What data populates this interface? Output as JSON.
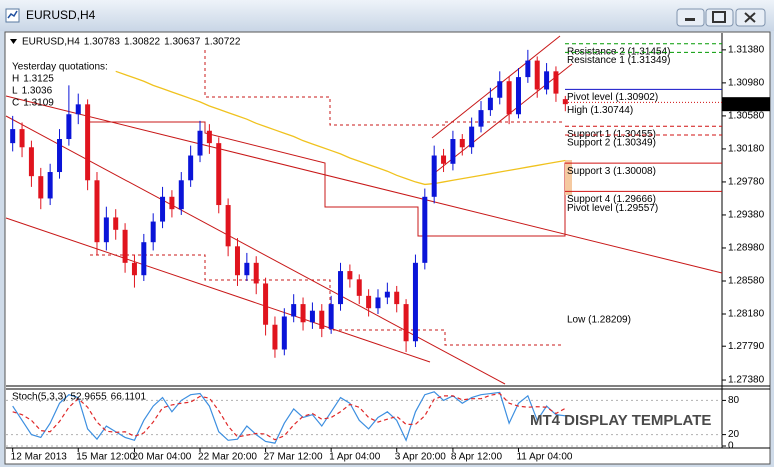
{
  "window": {
    "title": "EURUSD,H4"
  },
  "watermark": "MT4 DISPLAY TEMPLATE",
  "chart_data": [
    {
      "type": "candlestick",
      "title": "EURUSD,H4",
      "quote": {
        "open": 1.30783,
        "high": 1.30822,
        "low": 1.30637,
        "close": 1.30722
      },
      "yesterday": {
        "heading": "Yesterday quotations:",
        "rows": [
          {
            "label": "H",
            "value": 1.3125
          },
          {
            "label": "L",
            "value": 1.3036
          },
          {
            "label": "C",
            "value": 1.3109
          }
        ]
      },
      "categories": [
        "12 Mar 2013",
        null,
        null,
        null,
        null,
        null,
        null,
        "15 Mar 12:00",
        null,
        null,
        null,
        null,
        null,
        "20 Mar 04:00",
        null,
        null,
        null,
        null,
        null,
        null,
        "22 Mar 20:00",
        null,
        null,
        null,
        null,
        null,
        null,
        "27 Mar 12:00",
        null,
        null,
        null,
        null,
        null,
        null,
        "1 Apr 04:00",
        null,
        null,
        null,
        null,
        null,
        null,
        "3 Apr 20:00",
        null,
        null,
        null,
        null,
        null,
        "8 Apr 12:00",
        null,
        null,
        null,
        null,
        null,
        null,
        "11 Apr 04:00",
        null,
        null,
        null,
        null,
        null
      ],
      "open": [
        1.3025,
        1.3042,
        1.302,
        1.2985,
        1.2958,
        1.299,
        1.303,
        1.306,
        1.3072,
        1.298,
        1.2905,
        1.2935,
        1.292,
        1.288,
        1.2865,
        1.2905,
        1.293,
        1.296,
        1.2945,
        1.298,
        1.301,
        1.304,
        1.3025,
        1.295,
        1.29,
        1.2865,
        1.288,
        1.2855,
        1.2805,
        1.2775,
        1.2815,
        1.283,
        1.2808,
        1.2822,
        1.28,
        1.283,
        1.287,
        1.286,
        1.284,
        1.2825,
        1.2838,
        1.2845,
        1.283,
        1.2785,
        1.288,
        1.296,
        1.301,
        1.3,
        1.303,
        1.302,
        1.3045,
        1.3065,
        1.308,
        1.31,
        1.306,
        1.3105,
        1.3125,
        1.309,
        1.3112,
        1.30783
      ],
      "high": [
        1.3058,
        1.305,
        1.3028,
        1.2995,
        1.3,
        1.3042,
        1.3095,
        1.3085,
        1.3078,
        1.299,
        1.2948,
        1.2945,
        1.2928,
        1.289,
        1.2915,
        1.294,
        1.2972,
        1.2968,
        1.299,
        1.3022,
        1.3052,
        1.3048,
        1.3032,
        1.2958,
        1.291,
        1.2892,
        1.2888,
        1.2862,
        1.2815,
        1.2825,
        1.2842,
        1.2838,
        1.2832,
        1.283,
        1.284,
        1.288,
        1.2878,
        1.2866,
        1.2848,
        1.2848,
        1.2856,
        1.2852,
        1.2836,
        1.289,
        1.297,
        1.3022,
        1.3018,
        1.304,
        1.3036,
        1.3056,
        1.3076,
        1.3092,
        1.3112,
        1.3106,
        1.3116,
        1.3138,
        1.313,
        1.3122,
        1.3118,
        1.30822
      ],
      "low": [
        1.3015,
        1.3008,
        1.2972,
        1.2945,
        1.295,
        1.2982,
        1.3022,
        1.3048,
        1.2968,
        1.289,
        1.2895,
        1.2908,
        1.2868,
        1.285,
        1.2858,
        1.2895,
        1.2922,
        1.2935,
        1.2938,
        1.2972,
        1.3002,
        1.3012,
        1.294,
        1.2888,
        1.2852,
        1.2858,
        1.2842,
        1.2792,
        1.2765,
        1.2768,
        1.2808,
        1.2798,
        1.28,
        1.279,
        1.2794,
        1.2822,
        1.285,
        1.283,
        1.2815,
        1.2818,
        1.283,
        1.282,
        1.2772,
        1.2778,
        1.2872,
        1.2952,
        1.299,
        1.2992,
        1.301,
        1.3012,
        1.3038,
        1.3058,
        1.3072,
        1.3048,
        1.3055,
        1.3098,
        1.308,
        1.3084,
        1.3075,
        1.30637
      ],
      "close": [
        1.3042,
        1.302,
        1.2985,
        1.2958,
        1.299,
        1.303,
        1.306,
        1.3072,
        1.298,
        1.2905,
        1.2935,
        1.292,
        1.288,
        1.2865,
        1.2905,
        1.293,
        1.296,
        1.2945,
        1.298,
        1.301,
        1.304,
        1.3025,
        1.295,
        1.29,
        1.2865,
        1.288,
        1.2855,
        1.2805,
        1.2775,
        1.2815,
        1.283,
        1.2808,
        1.2822,
        1.28,
        1.283,
        1.287,
        1.286,
        1.284,
        1.2825,
        1.2838,
        1.2845,
        1.283,
        1.2785,
        1.288,
        1.296,
        1.301,
        1.3,
        1.303,
        1.302,
        1.3045,
        1.3065,
        1.308,
        1.31,
        1.306,
        1.3105,
        1.3125,
        1.309,
        1.3112,
        1.3085,
        1.30722
      ],
      "up_color": "#0a14d8",
      "down_color": "#e0141e",
      "moving_average": {
        "color": "#f0c21e",
        "values": [
          null,
          null,
          null,
          null,
          null,
          null,
          null,
          null,
          null,
          null,
          null,
          1.3112,
          1.3108,
          1.3104,
          1.31,
          1.3095,
          1.3091,
          1.3087,
          1.3083,
          1.3079,
          1.3075,
          1.307,
          1.3066,
          1.3062,
          1.3058,
          1.3054,
          1.3049,
          1.3045,
          1.3041,
          1.3037,
          1.3033,
          1.3028,
          1.3024,
          1.302,
          1.3016,
          1.3012,
          1.3007,
          1.3003,
          1.2999,
          1.2995,
          1.2991,
          1.2986,
          1.2982,
          1.2978,
          1.2975,
          1.2976,
          1.2978,
          1.298,
          1.2982,
          1.2984,
          1.2986,
          1.2988,
          1.299,
          1.2992,
          1.2994,
          1.2996,
          1.2998,
          1.3,
          1.3002,
          1.3004
        ]
      },
      "levels": [
        {
          "label": "Resistance 2 (1.31454)",
          "value": 1.31454,
          "color": "#009a00",
          "style": "dashed"
        },
        {
          "label": "Resistance 1 (1.31349)",
          "value": 1.31349,
          "color": "#009a00",
          "style": "dashed"
        },
        {
          "label": "Pivot level (1.30902)",
          "value": 1.30902,
          "color": "#1010c8",
          "style": "solid"
        },
        {
          "label": "High (1.30744)",
          "value": 1.30744,
          "color": "#d01010",
          "style": "dotted"
        },
        {
          "label": "Support 1 (1.30455)",
          "value": 1.30455,
          "color": "#d01010",
          "style": "dashed"
        },
        {
          "label": "Support 2 (1.30349)",
          "value": 1.30349,
          "color": "#d01010",
          "style": "dashed"
        },
        {
          "label": "Support 3 (1.30008)",
          "value": 1.30008,
          "color": "#d01010",
          "style": "solid"
        },
        {
          "label": "Support 4 (1.29666)",
          "value": 1.29666,
          "color": "#d01010",
          "style": "solid"
        },
        {
          "label": "Pivot level (1.29557)",
          "value": 1.29557,
          "color": "#d01010",
          "style": "none"
        },
        {
          "label": "Low (1.28209)",
          "value": 1.28209,
          "color": "#d01010",
          "style": "none"
        }
      ],
      "ylim": [
        1.2732,
        1.3156
      ],
      "yticks": [
        {
          "value": 1.3138,
          "label": "1.31380"
        },
        {
          "value": 1.3098,
          "label": "1.30980"
        },
        {
          "value": 1.3058,
          "label": "1.30580"
        },
        {
          "value": 1.3018,
          "label": "1.30180"
        },
        {
          "value": 1.2978,
          "label": "1.29780"
        },
        {
          "value": 1.2938,
          "label": "1.29380"
        },
        {
          "value": 1.2898,
          "label": "1.28980"
        },
        {
          "value": 1.2858,
          "label": "1.28580"
        },
        {
          "value": 1.2818,
          "label": "1.28180"
        },
        {
          "value": 1.2779,
          "label": "1.27790"
        },
        {
          "value": 1.2738,
          "label": "1.27380"
        }
      ]
    },
    {
      "type": "line",
      "title": "Stoch(5,3,3)",
      "series": [
        {
          "color": "#3d8fe0",
          "style": "solid",
          "values": [
            70,
            45,
            20,
            15,
            40,
            75,
            90,
            85,
            30,
            12,
            35,
            25,
            15,
            10,
            45,
            70,
            85,
            60,
            80,
            90,
            92,
            70,
            25,
            10,
            12,
            35,
            20,
            8,
            5,
            40,
            65,
            50,
            55,
            35,
            60,
            85,
            75,
            45,
            30,
            50,
            60,
            45,
            10,
            60,
            90,
            95,
            80,
            88,
            75,
            85,
            90,
            92,
            94,
            40,
            75,
            88,
            45,
            70,
            55,
            52.9655
          ]
        },
        {
          "color": "#e02828",
          "style": "dashed",
          "values": [
            60,
            55,
            45,
            27,
            25,
            43,
            68,
            83,
            68,
            42,
            26,
            24,
            25,
            17,
            23,
            42,
            67,
            72,
            75,
            77,
            87,
            84,
            62,
            35,
            16,
            19,
            22,
            21,
            11,
            18,
            37,
            52,
            57,
            47,
            50,
            60,
            73,
            68,
            50,
            42,
            47,
            52,
            38,
            38,
            53,
            82,
            88,
            88,
            81,
            83,
            83,
            89,
            92,
            75,
            70,
            68,
            69,
            68,
            57,
            66.1101
          ]
        }
      ],
      "ylim": [
        0,
        100
      ],
      "yticks": [
        80,
        20,
        0
      ]
    }
  ]
}
